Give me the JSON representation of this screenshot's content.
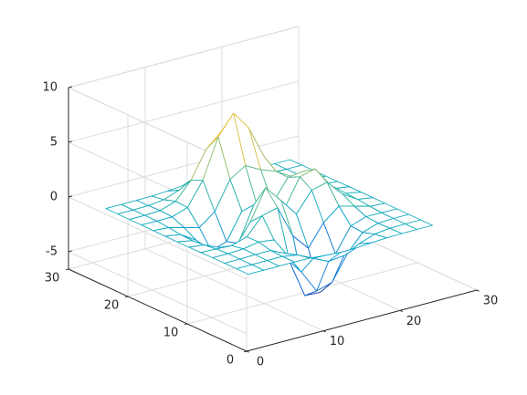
{
  "chart_data": {
    "type": "mesh",
    "x": [
      1,
      3,
      5,
      7,
      9,
      11,
      13,
      15,
      17,
      19,
      21,
      23,
      25
    ],
    "y": [
      1,
      3,
      5,
      7,
      9,
      11,
      13,
      15,
      17,
      19,
      21,
      23,
      25
    ],
    "z": [
      [
        0,
        0,
        0,
        0,
        -0.03,
        -0.14,
        -0.24,
        -0.22,
        -0.11,
        -0.03,
        0,
        0,
        0
      ],
      [
        0,
        0,
        0.01,
        0,
        -0.23,
        -0.91,
        -1.56,
        -1.4,
        -0.69,
        -0.18,
        -0.03,
        0,
        0
      ],
      [
        0,
        0.01,
        0.05,
        0.05,
        -0.59,
        -2.64,
        -4.76,
        -4.35,
        -2.1,
        -0.53,
        -0.06,
        0,
        0
      ],
      [
        0,
        0.01,
        0.08,
        0.33,
        0.15,
        -2.18,
        -5.68,
        -5.76,
        -2.63,
        -0.44,
        0.04,
        0.03,
        0
      ],
      [
        -0.01,
        -0.06,
        -0.13,
        0.3,
        1.86,
        2.22,
        -0.73,
        -2.22,
        -0.27,
        0.88,
        0.5,
        0.11,
        0.01
      ],
      [
        -0.03,
        -0.2,
        -0.8,
        -1.21,
        0.8,
        3.55,
        2.0,
        0.39,
        2.2,
        2.56,
        1.12,
        0.24,
        0.03
      ],
      [
        -0.04,
        -0.3,
        -1.33,
        -2.77,
        -1.65,
        1.48,
        0.98,
        0.38,
        2.93,
        3.27,
        1.41,
        0.3,
        0.03
      ],
      [
        -0.03,
        -0.25,
        -1.12,
        -2.49,
        -2.0,
        0.39,
        0.46,
        0.38,
        2.38,
        2.56,
        1.09,
        0.23,
        0.03
      ],
      [
        -0.01,
        -0.11,
        -0.48,
        -0.86,
        0.23,
        2.8,
        3.69,
        2.94,
        2.43,
        1.58,
        0.58,
        0.12,
        0.01
      ],
      [
        0,
        -0.02,
        -0.01,
        0.48,
        2.61,
        6.19,
        7.99,
        6.25,
        3.25,
        1.19,
        0.29,
        0.05,
        0
      ],
      [
        0,
        0.01,
        0.08,
        0.55,
        2.1,
        4.56,
        5.86,
        4.57,
        2.21,
        0.68,
        0.13,
        0.02,
        0
      ],
      [
        0,
        0,
        0.03,
        0.19,
        0.69,
        1.46,
        1.88,
        1.46,
        0.7,
        0.2,
        0.04,
        0,
        0
      ],
      [
        0,
        0,
        0.01,
        0.03,
        0.11,
        0.23,
        0.3,
        0.23,
        0.11,
        0.03,
        0.01,
        0,
        0
      ]
    ],
    "xlim": [
      0,
      30
    ],
    "ylim": [
      0,
      30
    ],
    "zlim": [
      -6.6,
      10
    ],
    "xticks": [
      0,
      10,
      20,
      30
    ],
    "yticks": [
      0,
      10,
      20,
      30
    ],
    "zticks": [
      -5,
      0,
      5,
      10
    ],
    "grid": true,
    "colormap": [
      "#352a87",
      "#0f5cdd",
      "#1481d6",
      "#06a4ca",
      "#2eb7a4",
      "#87bf77",
      "#d1bb59",
      "#fec832",
      "#f9fb0e"
    ]
  }
}
